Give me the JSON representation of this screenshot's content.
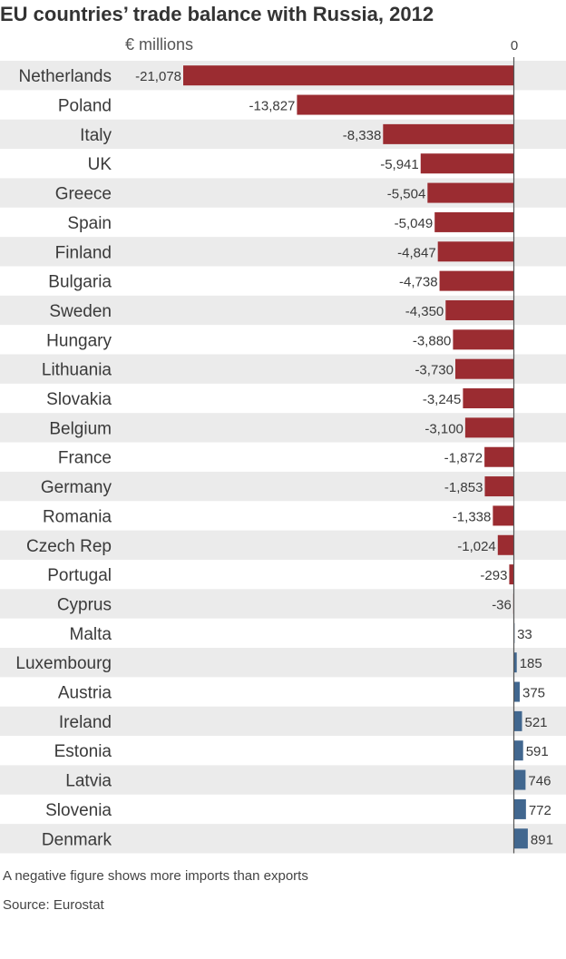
{
  "chart_data": {
    "type": "bar",
    "orientation": "horizontal",
    "title": "EU countries’ trade balance with Russia, 2012",
    "unit_label": "€ millions",
    "zero_label": "0",
    "categories": [
      "Netherlands",
      "Poland",
      "Italy",
      "UK",
      "Greece",
      "Spain",
      "Finland",
      "Bulgaria",
      "Sweden",
      "Hungary",
      "Lithuania",
      "Slovakia",
      "Belgium",
      "France",
      "Germany",
      "Romania",
      "Czech Rep",
      "Portugal",
      "Cyprus",
      "Malta",
      "Luxembourg",
      "Austria",
      "Ireland",
      "Estonia",
      "Latvia",
      "Slovenia",
      "Denmark"
    ],
    "values": [
      -21078,
      -13827,
      -8338,
      -5941,
      -5504,
      -5049,
      -4847,
      -4738,
      -4350,
      -3880,
      -3730,
      -3245,
      -3100,
      -1872,
      -1853,
      -1338,
      -1024,
      -293,
      -36,
      33,
      185,
      375,
      521,
      591,
      746,
      772,
      891
    ],
    "value_labels": [
      "-21,078",
      "-13,827",
      "-8,338",
      "-5,941",
      "-5,504",
      "-5,049",
      "-4,847",
      "-4,738",
      "-4,350",
      "-3,880",
      "-3,730",
      "-3,245",
      "-3,100",
      "-1,872",
      "-1,853",
      "-1,338",
      "-1,024",
      "-293",
      "-36",
      "33",
      "185",
      "375",
      "521",
      "591",
      "746",
      "772",
      "891"
    ],
    "xlim": [
      -21078,
      1000
    ],
    "colors": {
      "negative": "#9b2c31",
      "positive": "#41678f",
      "row_alt": "#ebebeb",
      "axis": "#555555"
    },
    "note": "A negative figure shows more imports than exports",
    "source": "Source: Eurostat"
  }
}
